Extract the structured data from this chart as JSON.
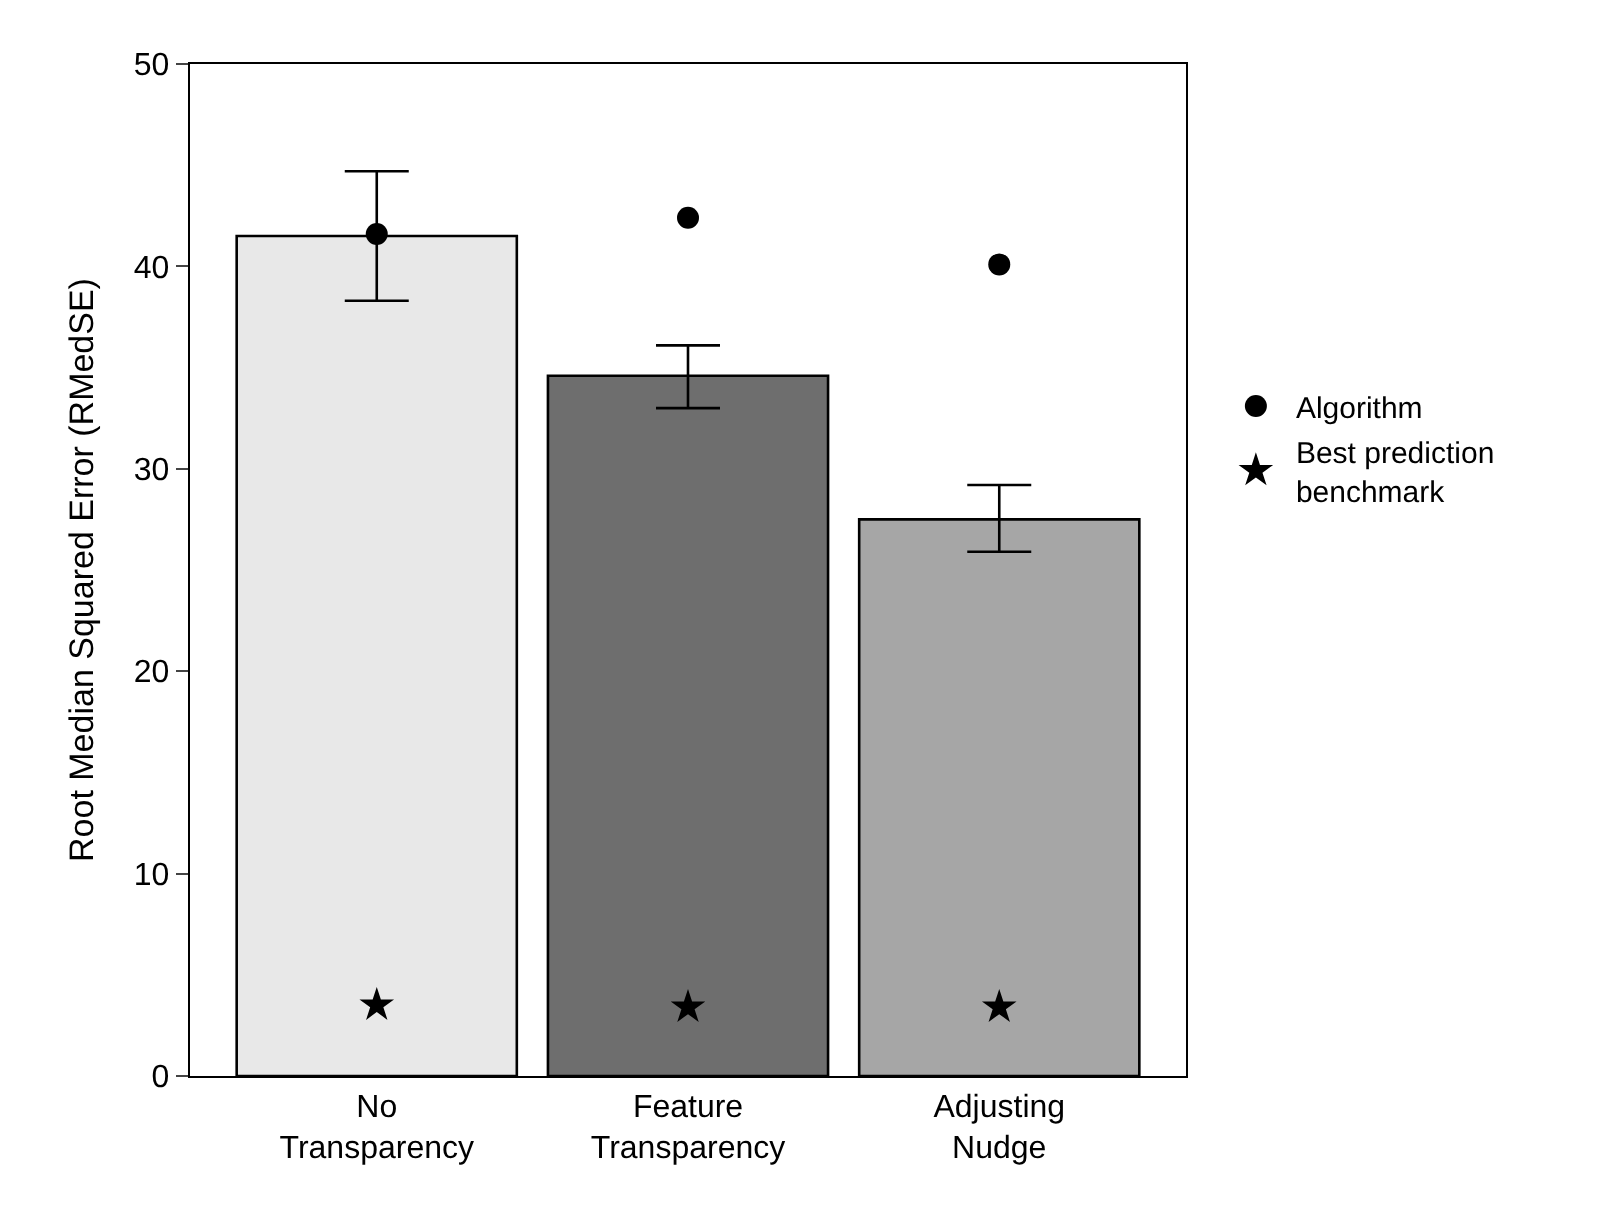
{
  "chart_data": {
    "type": "bar",
    "ylabel": "Root Median Squared Error (RMedSE)",
    "categories": [
      "No Transparency",
      "Feature Transparency",
      "Adjusting Nudge"
    ],
    "series": [
      {
        "colors": [
          "#e8e8e8",
          "#6e6e6e",
          "#a6a6a6"
        ],
        "values": [
          41.5,
          34.6,
          27.5
        ],
        "errors": [
          [
            38.3,
            44.7
          ],
          [
            33.0,
            36.1
          ],
          [
            25.9,
            29.2
          ]
        ]
      },
      {
        "type": "scatter",
        "name": "Algorithm",
        "color": "#000000",
        "marker": "circle",
        "values": [
          41.6,
          42.4,
          40.1
        ]
      },
      {
        "type": "scatter",
        "name": "Best prediction benchmark",
        "color": "#000000",
        "marker": "star",
        "values": [
          3.5,
          3.4,
          3.4
        ]
      }
    ],
    "ylim": [
      0,
      50
    ],
    "yticks": [
      0,
      10,
      20,
      30,
      40,
      50
    ],
    "legend": "right"
  }
}
